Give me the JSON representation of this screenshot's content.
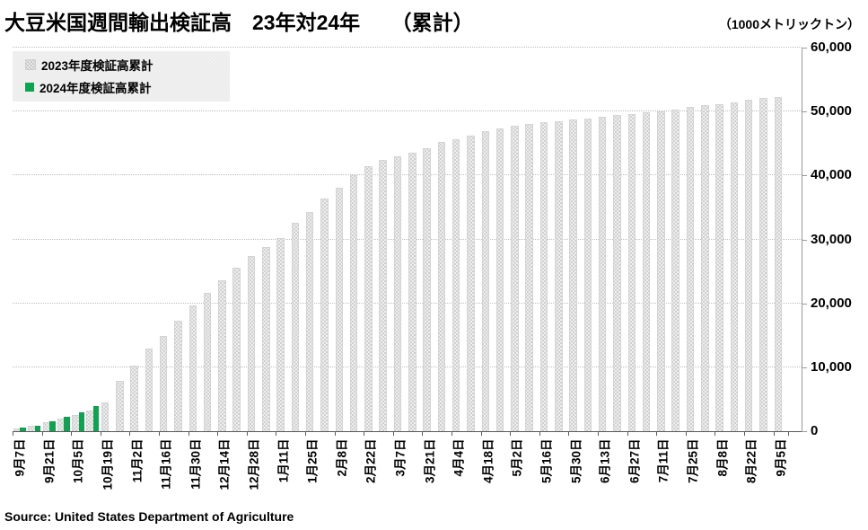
{
  "source": "Source: United States Department of Agriculture",
  "chart_data": {
    "type": "bar",
    "title": "大豆米国週間輸出検証高　23年対24年　　（累計）",
    "unit_label": "（1000メトリックトン）",
    "ylim": [
      0,
      60000
    ],
    "ytick_interval": 10000,
    "ytick_labels": [
      "0",
      "10,000",
      "20,000",
      "30,000",
      "40,000",
      "50,000",
      "60,000"
    ],
    "grid": "horizontal-dotted",
    "legend_position": "top-left",
    "n_weeks": 53,
    "x_label_every": 2,
    "x_tick_labels": [
      "9月7日",
      "9月21日",
      "10月5日",
      "10月19日",
      "11月2日",
      "11月16日",
      "11月30日",
      "12月14日",
      "12月28日",
      "1月11日",
      "1月25日",
      "2月8日",
      "2月22日",
      "3月7日",
      "3月21日",
      "4月4日",
      "4月18日",
      "5月2日",
      "5月16日",
      "5月30日",
      "6月13日",
      "6月27日",
      "7月11日",
      "7月25日",
      "8月8日",
      "8月22日",
      "9月5日"
    ],
    "series": [
      {
        "name": "2023年度検証高累計",
        "style": "gray-dotted",
        "color": "#d9d9d9",
        "values": [
          350,
          750,
          1200,
          1800,
          2350,
          3100,
          4400,
          7700,
          10100,
          12800,
          14700,
          17200,
          19500,
          21500,
          23500,
          25400,
          27200,
          28700,
          30100,
          32400,
          34200,
          36200,
          38000,
          39900,
          41300,
          42300,
          42800,
          43400,
          44100,
          45100,
          45500,
          46100,
          46800,
          47200,
          47600,
          47900,
          48200,
          48400,
          48600,
          48800,
          49000,
          49300,
          49400,
          49700,
          49900,
          50200,
          50600,
          50800,
          51000,
          51300,
          51750,
          52000,
          52200
        ]
      },
      {
        "name": "2024年度検証高累計",
        "style": "solid-green",
        "color": "#0da350",
        "values": [
          500,
          900,
          1550,
          2250,
          3000,
          3950,
          null,
          null,
          null,
          null,
          null,
          null,
          null,
          null,
          null,
          null,
          null,
          null,
          null,
          null,
          null,
          null,
          null,
          null,
          null,
          null,
          null,
          null,
          null,
          null,
          null,
          null,
          null,
          null,
          null,
          null,
          null,
          null,
          null,
          null,
          null,
          null,
          null,
          null,
          null,
          null,
          null,
          null,
          null,
          null,
          null,
          null,
          null
        ]
      }
    ]
  }
}
